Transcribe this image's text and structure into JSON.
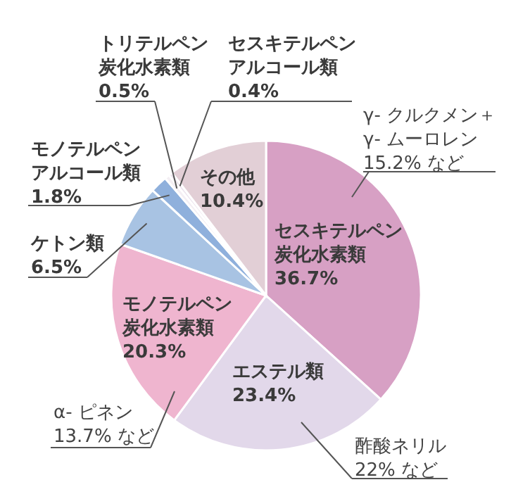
{
  "chart_data": {
    "type": "pie",
    "categories": [
      "セスキテルペン炭化水素類",
      "エステル類",
      "モノテルペン炭化水素類",
      "ケトン類",
      "モノテルペンアルコール類",
      "トリテルペン炭化水素類",
      "セスキテルペンアルコール類",
      "その他"
    ],
    "values": [
      36.7,
      23.4,
      20.3,
      6.5,
      1.8,
      0.5,
      0.4,
      10.4
    ],
    "value_labels": [
      "36.7%",
      "23.4%",
      "20.3%",
      "6.5%",
      "1.8%",
      "0.5%",
      "0.4%",
      "10.4%"
    ],
    "colors": [
      "#d7a0c4",
      "#e2d8ea",
      "#efb5cf",
      "#a8c3e3",
      "#8fb0dc",
      "#f4eff4",
      "#ece4ee",
      "#e2cfd6"
    ],
    "annotations": [
      "γ- クルクメン＋\nγ- ムーロレン\n15.2% など",
      "α- ピネン\n13.7% など",
      "酢酸ネリル\n22% など"
    ]
  }
}
